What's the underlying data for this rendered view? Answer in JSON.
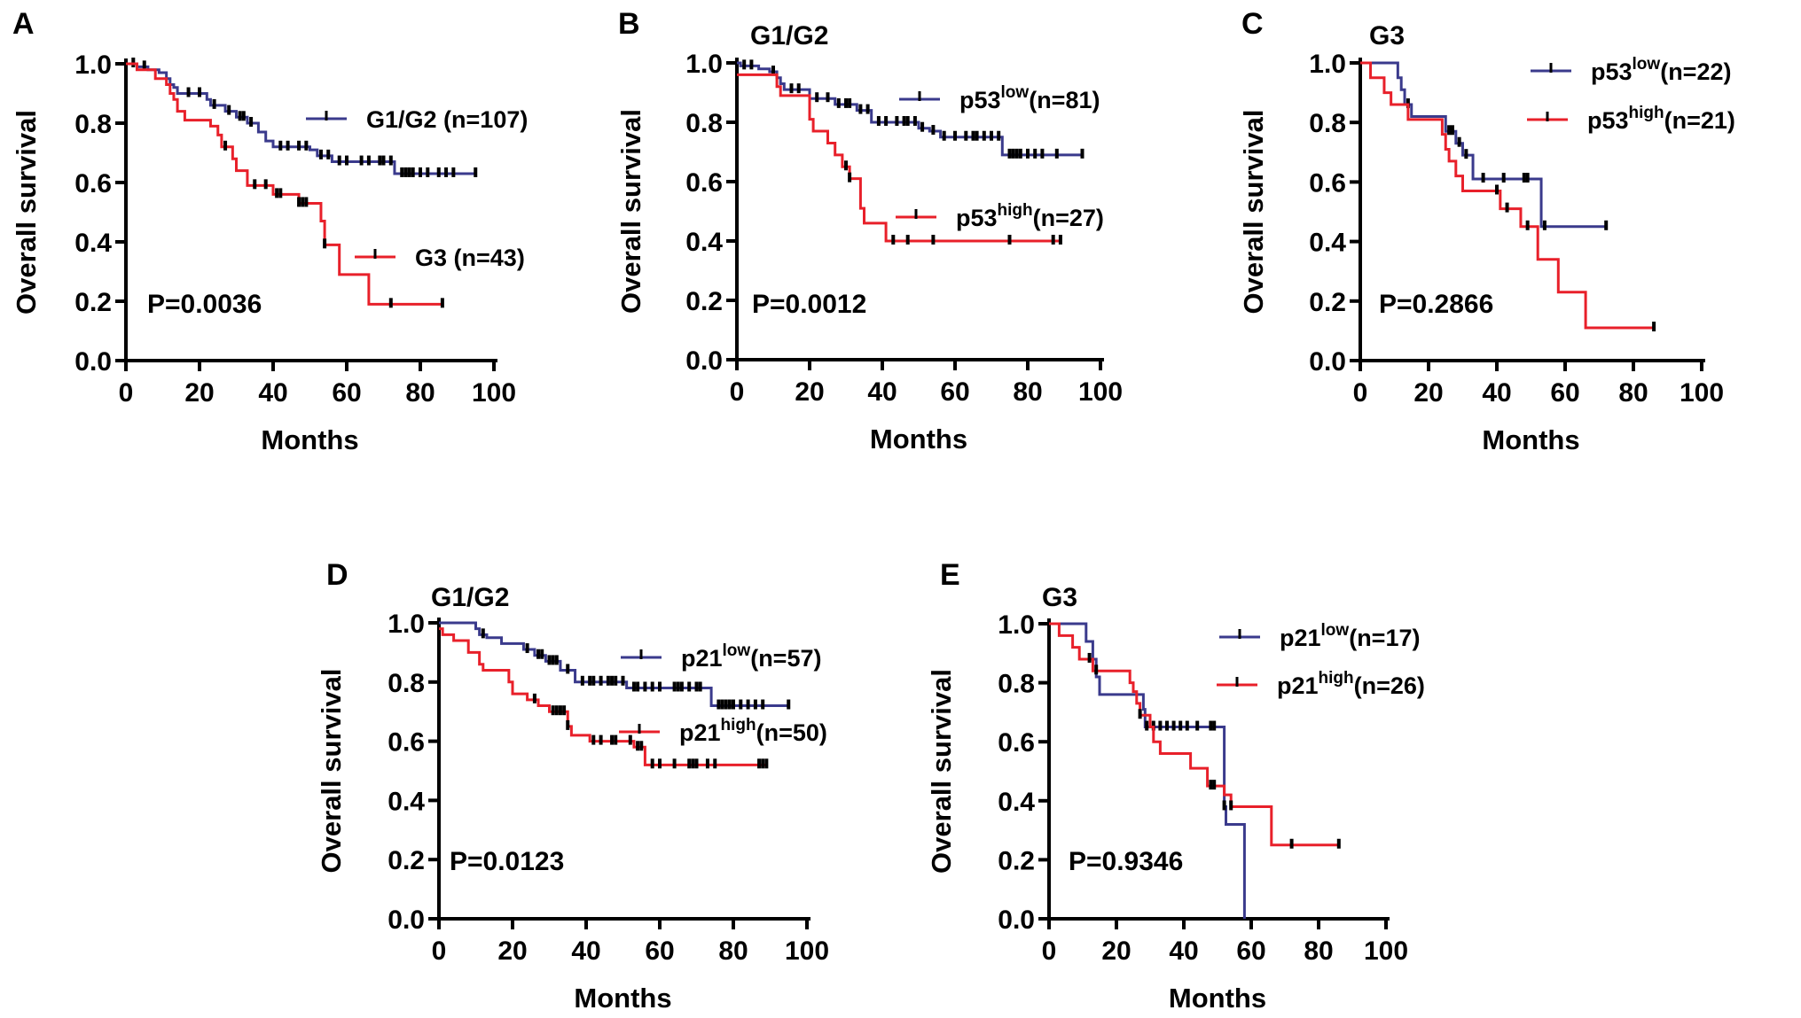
{
  "figure": {
    "colors": {
      "low": "#3a3a8c",
      "high": "#e8202a",
      "axis": "#000000",
      "censor": "#000000"
    }
  },
  "chart_data": [
    {
      "type": "line",
      "panel": "A",
      "title": "",
      "xlabel": "Months",
      "ylabel": "Overall survival",
      "xlim": [
        0,
        100
      ],
      "ylim": [
        0,
        1.0
      ],
      "xticks": [
        "0",
        "20",
        "40",
        "60",
        "80",
        "100"
      ],
      "yticks": [
        "0.0",
        "0.2",
        "0.4",
        "0.6",
        "0.8",
        "1.0"
      ],
      "annotation": "P=0.0036",
      "legend_position": "right",
      "series": [
        {
          "name": "G1/G2",
          "sup": "",
          "n_label": " (n=107)",
          "color_key": "low",
          "steps": [
            [
              0,
              1.0
            ],
            [
              3,
              0.99
            ],
            [
              6,
              0.98
            ],
            [
              9,
              0.97
            ],
            [
              11,
              0.95
            ],
            [
              12,
              0.93
            ],
            [
              13,
              0.92
            ],
            [
              14,
              0.9
            ],
            [
              22,
              0.88
            ],
            [
              23,
              0.86
            ],
            [
              27,
              0.84
            ],
            [
              30,
              0.82
            ],
            [
              33,
              0.8
            ],
            [
              36,
              0.77
            ],
            [
              38,
              0.74
            ],
            [
              40,
              0.72
            ],
            [
              50,
              0.71
            ],
            [
              52,
              0.69
            ],
            [
              56,
              0.67
            ],
            [
              73,
              0.63
            ]
          ],
          "end": 95,
          "censors": [
            2,
            5,
            17,
            20,
            24,
            28,
            31,
            32,
            34,
            42,
            44,
            47,
            49,
            53,
            55,
            58,
            60,
            64,
            66,
            69,
            70,
            72,
            75,
            76,
            77,
            78,
            80,
            82,
            85,
            87,
            89,
            95
          ]
        },
        {
          "name": "G3",
          "sup": "",
          "n_label": " (n=43)",
          "color_key": "high",
          "steps": [
            [
              0,
              1.0
            ],
            [
              3,
              0.98
            ],
            [
              8,
              0.95
            ],
            [
              11,
              0.93
            ],
            [
              12,
              0.9
            ],
            [
              13,
              0.88
            ],
            [
              14,
              0.84
            ],
            [
              16,
              0.81
            ],
            [
              23,
              0.79
            ],
            [
              25,
              0.76
            ],
            [
              26,
              0.72
            ],
            [
              29,
              0.68
            ],
            [
              30,
              0.64
            ],
            [
              33,
              0.59
            ],
            [
              40,
              0.56
            ],
            [
              47,
              0.53
            ],
            [
              53,
              0.47
            ],
            [
              54,
              0.39
            ],
            [
              58,
              0.29
            ],
            [
              66,
              0.19
            ]
          ],
          "end": 86,
          "censors": [
            27,
            35,
            38,
            41,
            42,
            47,
            48,
            49,
            54,
            72,
            86
          ]
        }
      ]
    },
    {
      "type": "line",
      "panel": "B",
      "title": "G1/G2",
      "xlabel": "Months",
      "ylabel": "Overall survival",
      "xlim": [
        0,
        100
      ],
      "ylim": [
        0,
        1.0
      ],
      "xticks": [
        "0",
        "20",
        "40",
        "60",
        "80",
        "100"
      ],
      "yticks": [
        "0.0",
        "0.2",
        "0.4",
        "0.6",
        "0.8",
        "1.0"
      ],
      "annotation": "P=0.0012",
      "legend_position": "right",
      "series": [
        {
          "name": "p53",
          "sup": "low",
          "n_label": "(n=81)",
          "color_key": "low",
          "steps": [
            [
              0,
              1.0
            ],
            [
              1,
              0.99
            ],
            [
              6,
              0.98
            ],
            [
              9,
              0.97
            ],
            [
              11,
              0.95
            ],
            [
              12,
              0.93
            ],
            [
              13,
              0.91
            ],
            [
              20,
              0.88
            ],
            [
              27,
              0.86
            ],
            [
              33,
              0.84
            ],
            [
              37,
              0.8
            ],
            [
              50,
              0.78
            ],
            [
              53,
              0.77
            ],
            [
              56,
              0.75
            ],
            [
              73,
              0.69
            ]
          ],
          "end": 95,
          "censors": [
            2,
            4,
            10,
            15,
            17,
            22,
            25,
            28,
            30,
            31,
            34,
            36,
            39,
            41,
            44,
            46,
            47,
            49,
            51,
            54,
            57,
            60,
            63,
            65,
            66,
            68,
            70,
            72,
            75,
            76,
            77,
            78,
            80,
            82,
            84,
            88,
            95
          ]
        },
        {
          "name": "p53",
          "sup": "high",
          "n_label": "(n=27)",
          "color_key": "high",
          "steps": [
            [
              0,
              0.96
            ],
            [
              11,
              0.92
            ],
            [
              12,
              0.89
            ],
            [
              20,
              0.81
            ],
            [
              21,
              0.77
            ],
            [
              25,
              0.73
            ],
            [
              27,
              0.69
            ],
            [
              29,
              0.65
            ],
            [
              31,
              0.61
            ],
            [
              34,
              0.51
            ],
            [
              35,
              0.46
            ],
            [
              41,
              0.4
            ]
          ],
          "end": 89,
          "censors": [
            30,
            31,
            43,
            47,
            54,
            75,
            87,
            89
          ]
        }
      ]
    },
    {
      "type": "line",
      "panel": "C",
      "title": "G3",
      "xlabel": "Months",
      "ylabel": "Overall survival",
      "xlim": [
        0,
        100
      ],
      "ylim": [
        0,
        1.0
      ],
      "xticks": [
        "0",
        "20",
        "40",
        "60",
        "80",
        "100"
      ],
      "yticks": [
        "0.0",
        "0.2",
        "0.4",
        "0.6",
        "0.8",
        "1.0"
      ],
      "annotation": "P=0.2866",
      "legend_position": "top-right",
      "series": [
        {
          "name": "p53",
          "sup": "low",
          "n_label": "(n=22)",
          "color_key": "low",
          "steps": [
            [
              0,
              1.0
            ],
            [
              11,
              0.95
            ],
            [
              12,
              0.91
            ],
            [
              13,
              0.86
            ],
            [
              15,
              0.82
            ],
            [
              25,
              0.77
            ],
            [
              28,
              0.73
            ],
            [
              30,
              0.69
            ],
            [
              33,
              0.61
            ],
            [
              53,
              0.45
            ]
          ],
          "end": 72,
          "censors": [
            14,
            26,
            27,
            29,
            31,
            36,
            42,
            48,
            49,
            54,
            72
          ]
        },
        {
          "name": "p53",
          "sup": "high",
          "n_label": "(n=21)",
          "color_key": "high",
          "steps": [
            [
              0,
              1.0
            ],
            [
              3,
              0.95
            ],
            [
              7,
              0.9
            ],
            [
              9,
              0.86
            ],
            [
              14,
              0.81
            ],
            [
              24,
              0.76
            ],
            [
              25,
              0.71
            ],
            [
              26,
              0.67
            ],
            [
              28,
              0.62
            ],
            [
              30,
              0.57
            ],
            [
              41,
              0.51
            ],
            [
              47,
              0.45
            ],
            [
              52,
              0.34
            ],
            [
              58,
              0.23
            ],
            [
              66,
              0.11
            ]
          ],
          "end": 86,
          "censors": [
            40,
            43,
            49,
            86
          ]
        }
      ]
    },
    {
      "type": "line",
      "panel": "D",
      "title": "G1/G2",
      "xlabel": "Months",
      "ylabel": "Overall survival",
      "xlim": [
        0,
        100
      ],
      "ylim": [
        0,
        1.0
      ],
      "xticks": [
        "0",
        "20",
        "40",
        "60",
        "80",
        "100"
      ],
      "yticks": [
        "0.0",
        "0.2",
        "0.4",
        "0.6",
        "0.8",
        "1.0"
      ],
      "annotation": "P=0.0123",
      "legend_position": "right",
      "series": [
        {
          "name": "p21",
          "sup": "low",
          "n_label": "(n=57)",
          "color_key": "low",
          "steps": [
            [
              0,
              1.0
            ],
            [
              10,
              0.98
            ],
            [
              11,
              0.96
            ],
            [
              13,
              0.95
            ],
            [
              17,
              0.93
            ],
            [
              23,
              0.91
            ],
            [
              26,
              0.89
            ],
            [
              29,
              0.87
            ],
            [
              33,
              0.84
            ],
            [
              37,
              0.8
            ],
            [
              51,
              0.78
            ],
            [
              74,
              0.72
            ]
          ],
          "end": 95,
          "censors": [
            12,
            24,
            27,
            28,
            30,
            31,
            32,
            35,
            39,
            41,
            42,
            44,
            46,
            47,
            48,
            50,
            53,
            54,
            56,
            58,
            60,
            64,
            65,
            66,
            68,
            70,
            71,
            76,
            77,
            78,
            79,
            80,
            82,
            84,
            86,
            88,
            95
          ]
        },
        {
          "name": "p21",
          "sup": "high",
          "n_label": "(n=50)",
          "color_key": "high",
          "steps": [
            [
              0,
              0.98
            ],
            [
              1,
              0.96
            ],
            [
              4,
              0.94
            ],
            [
              8,
              0.9
            ],
            [
              11,
              0.86
            ],
            [
              12,
              0.84
            ],
            [
              19,
              0.8
            ],
            [
              20,
              0.76
            ],
            [
              24,
              0.74
            ],
            [
              27,
              0.72
            ],
            [
              30,
              0.7
            ],
            [
              35,
              0.65
            ],
            [
              36,
              0.62
            ],
            [
              41,
              0.6
            ],
            [
              53,
              0.58
            ],
            [
              56,
              0.52
            ]
          ],
          "end": 89,
          "censors": [
            26,
            31,
            32,
            33,
            34,
            35,
            42,
            44,
            47,
            48,
            52,
            54,
            55,
            58,
            60,
            64,
            68,
            69,
            70,
            73,
            75,
            87,
            88,
            89
          ]
        }
      ]
    },
    {
      "type": "line",
      "panel": "E",
      "title": "G3",
      "xlabel": "Months",
      "ylabel": "Overall survival",
      "xlim": [
        0,
        100
      ],
      "ylim": [
        0,
        1.0
      ],
      "xticks": [
        "0",
        "20",
        "40",
        "60",
        "80",
        "100"
      ],
      "yticks": [
        "0.0",
        "0.2",
        "0.4",
        "0.6",
        "0.8",
        "1.0"
      ],
      "annotation": "P=0.9346",
      "legend_position": "top-right",
      "series": [
        {
          "name": "p21",
          "sup": "low",
          "n_label": "(n=17)",
          "color_key": "low",
          "steps": [
            [
              0,
              1.0
            ],
            [
              11,
              0.94
            ],
            [
              13,
              0.88
            ],
            [
              14,
              0.82
            ],
            [
              15,
              0.76
            ],
            [
              28,
              0.71
            ],
            [
              28.5,
              0.65
            ],
            [
              52,
              0.38
            ],
            [
              52.5,
              0.32
            ],
            [
              58,
              0.0
            ]
          ],
          "end": 58,
          "censors": [
            29,
            31,
            33,
            35,
            37,
            39,
            41,
            44,
            48,
            49,
            52
          ]
        },
        {
          "name": "p21",
          "sup": "high",
          "n_label": "(n=26)",
          "color_key": "high",
          "steps": [
            [
              0,
              1.0
            ],
            [
              3,
              0.96
            ],
            [
              7,
              0.92
            ],
            [
              9,
              0.88
            ],
            [
              13,
              0.84
            ],
            [
              24,
              0.8
            ],
            [
              25,
              0.77
            ],
            [
              26,
              0.73
            ],
            [
              27,
              0.69
            ],
            [
              30,
              0.65
            ],
            [
              31,
              0.6
            ],
            [
              33,
              0.56
            ],
            [
              42,
              0.51
            ],
            [
              47,
              0.45
            ],
            [
              52,
              0.42
            ],
            [
              54,
              0.38
            ],
            [
              66,
              0.25
            ]
          ],
          "end": 86,
          "censors": [
            12,
            14,
            27,
            48,
            49,
            54,
            72,
            86
          ]
        }
      ]
    }
  ]
}
